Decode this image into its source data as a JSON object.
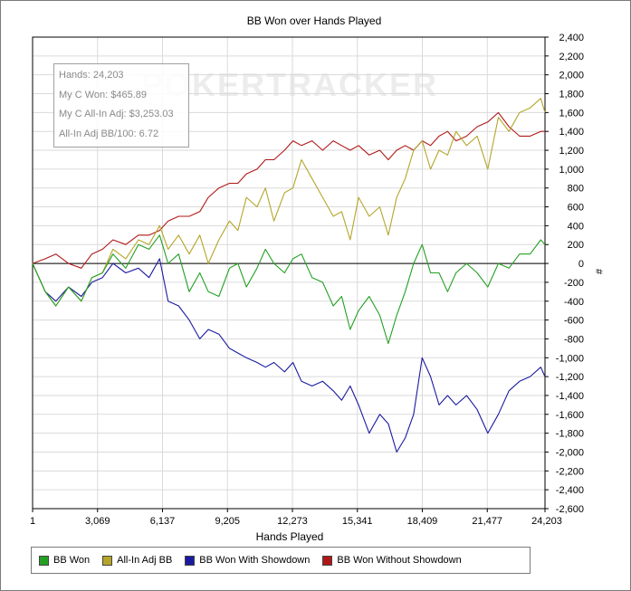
{
  "chart_data": {
    "type": "line",
    "title": "BB Won over Hands Played",
    "xlabel": "Hands Played",
    "ylabel": "#",
    "xlim": [
      1,
      24203
    ],
    "ylim": [
      -2600,
      2400
    ],
    "x_ticks": [
      "1",
      "3,069",
      "6,137",
      "9,205",
      "12,273",
      "15,341",
      "18,409",
      "21,477",
      "24,203"
    ],
    "y_ticks": [
      "2,400",
      "2,200",
      "2,000",
      "1,800",
      "1,600",
      "1,400",
      "1,200",
      "1,000",
      "800",
      "600",
      "400",
      "200",
      "0",
      "-200",
      "-400",
      "-600",
      "-800",
      "-1,000",
      "-1,200",
      "-1,400",
      "-1,600",
      "-1,800",
      "-2,000",
      "-2,200",
      "-2,400",
      "-2,600"
    ],
    "y_tick_values": [
      2400,
      2200,
      2000,
      1800,
      1600,
      1400,
      1200,
      1000,
      800,
      600,
      400,
      200,
      0,
      -200,
      -400,
      -600,
      -800,
      -1000,
      -1200,
      -1400,
      -1600,
      -1800,
      -2000,
      -2200,
      -2400,
      -2600
    ],
    "x_tick_values": [
      1,
      3069,
      6137,
      9205,
      12273,
      15341,
      18409,
      21477,
      24203
    ],
    "grid": true,
    "legend_position": "bottom",
    "series": [
      {
        "name": "BB Won",
        "color": "#22a022",
        "x": [
          1,
          600,
          1100,
          1700,
          2300,
          2800,
          3300,
          3800,
          4400,
          5000,
          5500,
          6000,
          6400,
          6900,
          7400,
          7900,
          8300,
          8800,
          9300,
          9700,
          10100,
          10600,
          11000,
          11400,
          11900,
          12300,
          12700,
          13200,
          13700,
          14200,
          14600,
          15000,
          15400,
          15900,
          16400,
          16800,
          17200,
          17600,
          18000,
          18400,
          18800,
          19200,
          19600,
          20000,
          20500,
          21000,
          21500,
          22000,
          22500,
          23000,
          23500,
          24000,
          24203
        ],
        "y": [
          0,
          -300,
          -450,
          -250,
          -400,
          -150,
          -100,
          100,
          -50,
          200,
          150,
          300,
          0,
          100,
          -300,
          -100,
          -300,
          -350,
          -50,
          0,
          -250,
          -50,
          150,
          0,
          -100,
          50,
          100,
          -150,
          -200,
          -450,
          -350,
          -700,
          -500,
          -350,
          -550,
          -850,
          -550,
          -300,
          0,
          200,
          -100,
          -100,
          -300,
          -100,
          0,
          -100,
          -250,
          0,
          -50,
          100,
          100,
          250,
          200
        ]
      },
      {
        "name": "All-In Adj BB",
        "color": "#b5a52a",
        "x": [
          1,
          600,
          1100,
          1700,
          2300,
          2800,
          3300,
          3800,
          4400,
          5000,
          5500,
          6000,
          6400,
          6900,
          7400,
          7900,
          8300,
          8800,
          9300,
          9700,
          10100,
          10600,
          11000,
          11400,
          11900,
          12300,
          12700,
          13200,
          13700,
          14200,
          14600,
          15000,
          15400,
          15900,
          16400,
          16800,
          17200,
          17600,
          18000,
          18400,
          18800,
          19200,
          19600,
          20000,
          20500,
          21000,
          21500,
          22000,
          22500,
          23000,
          23500,
          24000,
          24203
        ],
        "y": [
          0,
          -300,
          -450,
          -250,
          -400,
          -150,
          -100,
          150,
          50,
          250,
          200,
          400,
          150,
          300,
          100,
          300,
          0,
          250,
          450,
          350,
          700,
          600,
          800,
          450,
          750,
          800,
          1100,
          900,
          700,
          500,
          550,
          250,
          700,
          500,
          600,
          300,
          700,
          900,
          1200,
          1300,
          1000,
          1200,
          1150,
          1400,
          1250,
          1350,
          1000,
          1550,
          1400,
          1600,
          1650,
          1750,
          1600
        ]
      },
      {
        "name": "BB Won With Showdown",
        "color": "#1a1aa0",
        "x": [
          1,
          600,
          1100,
          1700,
          2300,
          2800,
          3300,
          3800,
          4400,
          5000,
          5500,
          6000,
          6400,
          6900,
          7400,
          7900,
          8300,
          8800,
          9300,
          9700,
          10100,
          10600,
          11000,
          11400,
          11900,
          12300,
          12700,
          13200,
          13700,
          14200,
          14600,
          15000,
          15400,
          15900,
          16400,
          16800,
          17200,
          17600,
          18000,
          18400,
          18800,
          19200,
          19600,
          20000,
          20500,
          21000,
          21500,
          22000,
          22500,
          23000,
          23500,
          24000,
          24203
        ],
        "y": [
          0,
          -300,
          -400,
          -250,
          -350,
          -200,
          -150,
          0,
          -100,
          -50,
          -150,
          50,
          -400,
          -450,
          -600,
          -800,
          -700,
          -750,
          -900,
          -950,
          -1000,
          -1050,
          -1100,
          -1050,
          -1150,
          -1050,
          -1250,
          -1300,
          -1250,
          -1350,
          -1450,
          -1300,
          -1500,
          -1800,
          -1600,
          -1700,
          -2000,
          -1850,
          -1600,
          -1000,
          -1200,
          -1500,
          -1400,
          -1500,
          -1400,
          -1550,
          -1800,
          -1600,
          -1350,
          -1250,
          -1200,
          -1100,
          -1200
        ]
      },
      {
        "name": "BB Won Without Showdown",
        "color": "#b01818",
        "x": [
          1,
          600,
          1100,
          1700,
          2300,
          2800,
          3300,
          3800,
          4400,
          5000,
          5500,
          6000,
          6400,
          6900,
          7400,
          7900,
          8300,
          8800,
          9300,
          9700,
          10100,
          10600,
          11000,
          11400,
          11900,
          12300,
          12700,
          13200,
          13700,
          14200,
          14600,
          15000,
          15400,
          15900,
          16400,
          16800,
          17200,
          17600,
          18000,
          18400,
          18800,
          19200,
          19600,
          20000,
          20500,
          21000,
          21500,
          22000,
          22500,
          23000,
          23500,
          24000,
          24203
        ],
        "y": [
          0,
          50,
          100,
          0,
          -50,
          100,
          150,
          250,
          200,
          300,
          300,
          350,
          450,
          500,
          500,
          550,
          700,
          800,
          850,
          850,
          950,
          1000,
          1100,
          1100,
          1200,
          1300,
          1250,
          1300,
          1200,
          1300,
          1250,
          1200,
          1250,
          1150,
          1200,
          1100,
          1200,
          1250,
          1200,
          1300,
          1250,
          1350,
          1400,
          1300,
          1350,
          1450,
          1500,
          1600,
          1450,
          1350,
          1350,
          1400,
          1400
        ]
      }
    ]
  },
  "info_box": {
    "hands": "Hands: 24,203",
    "my_c_won": "My C Won: $465.89",
    "my_c_allin_adj": "My C All-In Adj: $3,253.03",
    "allin_adj_bb100": "All-In Adj BB/100: 6.72"
  },
  "watermark": "POKERTRACKER"
}
